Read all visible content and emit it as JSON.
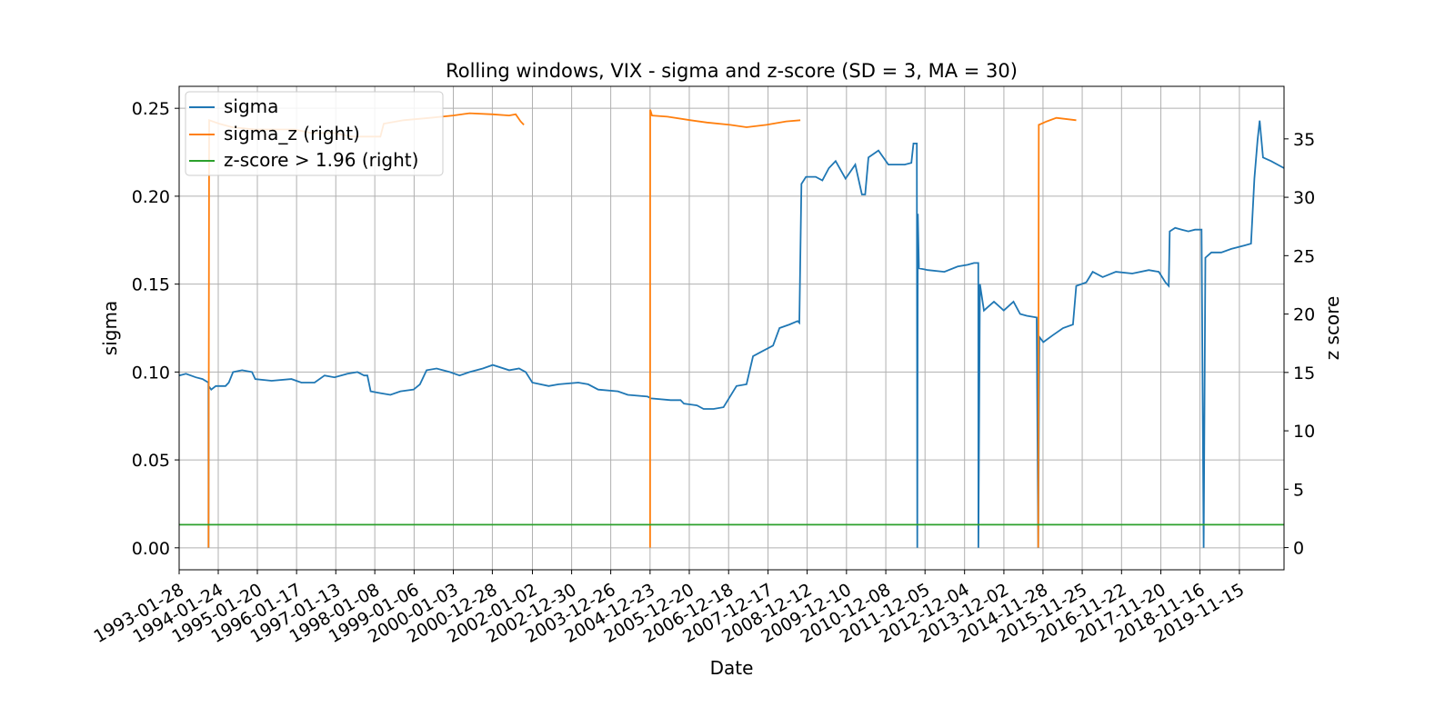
{
  "chart_data": {
    "type": "line",
    "title": "Rolling windows, VIX - sigma and z-score (SD = 3, MA = 30)",
    "xlabel": "Date",
    "ylabel": "sigma",
    "y2label": "z score",
    "xlim": [
      "1993-01-28",
      "2020-12-31"
    ],
    "ylim": [
      -0.0125,
      0.2625
    ],
    "y2lim": [
      -1.9,
      39.5
    ],
    "grid": true,
    "legend_position": "top-left",
    "x_ticks": [
      "1993-01-28",
      "1994-01-24",
      "1995-01-20",
      "1996-01-17",
      "1997-01-13",
      "1998-01-08",
      "1999-01-06",
      "2000-01-03",
      "2000-12-28",
      "2002-01-02",
      "2002-12-30",
      "2003-12-26",
      "2004-12-23",
      "2005-12-20",
      "2006-12-18",
      "2007-12-17",
      "2008-12-12",
      "2009-12-10",
      "2010-12-08",
      "2011-12-05",
      "2012-12-04",
      "2013-12-02",
      "2014-11-28",
      "2015-11-25",
      "2016-11-22",
      "2017-11-20",
      "2018-11-16",
      "2019-11-15"
    ],
    "y_ticks": [
      "0.00",
      "0.05",
      "0.10",
      "0.15",
      "0.20",
      "0.25"
    ],
    "y2_ticks": [
      "0",
      "5",
      "10",
      "15",
      "20",
      "25",
      "30",
      "35"
    ],
    "colors": {
      "sigma": "#1f77b4",
      "sigma_z": "#ff7f0e",
      "zscore": "#2ca02c"
    },
    "series": [
      {
        "name": "sigma",
        "axis": "left",
        "points": [
          [
            "1993-01-28",
            0.098
          ],
          [
            "1993-04-01",
            0.099
          ],
          [
            "1993-07-01",
            0.097
          ],
          [
            "1993-09-01",
            0.096
          ],
          [
            "1993-10-25",
            0.094
          ],
          [
            "1993-10-26",
            0.0
          ],
          [
            "1993-10-27",
            0.092
          ],
          [
            "1993-11-20",
            0.09
          ],
          [
            "1994-01-01",
            0.092
          ],
          [
            "1994-04-01",
            0.092
          ],
          [
            "1994-05-01",
            0.094
          ],
          [
            "1994-06-10",
            0.1
          ],
          [
            "1994-09-01",
            0.101
          ],
          [
            "1994-12-01",
            0.1
          ],
          [
            "1995-01-01",
            0.096
          ],
          [
            "1995-06-01",
            0.095
          ],
          [
            "1995-12-01",
            0.096
          ],
          [
            "1996-03-01",
            0.094
          ],
          [
            "1996-07-01",
            0.094
          ],
          [
            "1996-10-01",
            0.098
          ],
          [
            "1997-01-01",
            0.097
          ],
          [
            "1997-05-01",
            0.099
          ],
          [
            "1997-08-01",
            0.1
          ],
          [
            "1997-10-01",
            0.098
          ],
          [
            "1997-11-01",
            0.098
          ],
          [
            "1997-12-01",
            0.089
          ],
          [
            "1998-03-01",
            0.088
          ],
          [
            "1998-06-01",
            0.087
          ],
          [
            "1998-09-01",
            0.089
          ],
          [
            "1999-01-01",
            0.09
          ],
          [
            "1999-03-01",
            0.093
          ],
          [
            "1999-05-01",
            0.101
          ],
          [
            "1999-08-01",
            0.102
          ],
          [
            "1999-12-01",
            0.1
          ],
          [
            "2000-03-01",
            0.098
          ],
          [
            "2000-06-01",
            0.1
          ],
          [
            "2000-10-01",
            0.102
          ],
          [
            "2001-01-01",
            0.104
          ],
          [
            "2001-06-01",
            0.101
          ],
          [
            "2001-09-01",
            0.102
          ],
          [
            "2001-11-01",
            0.1
          ],
          [
            "2002-01-01",
            0.094
          ],
          [
            "2002-06-01",
            0.092
          ],
          [
            "2002-09-01",
            0.093
          ],
          [
            "2003-03-01",
            0.094
          ],
          [
            "2003-06-01",
            0.093
          ],
          [
            "2003-09-01",
            0.09
          ],
          [
            "2004-03-01",
            0.089
          ],
          [
            "2004-06-01",
            0.087
          ],
          [
            "2004-12-01",
            0.086
          ],
          [
            "2005-01-01",
            0.085
          ],
          [
            "2005-07-01",
            0.084
          ],
          [
            "2005-10-01",
            0.084
          ],
          [
            "2005-11-01",
            0.082
          ],
          [
            "2006-03-01",
            0.081
          ],
          [
            "2006-05-01",
            0.079
          ],
          [
            "2006-08-01",
            0.079
          ],
          [
            "2006-11-01",
            0.08
          ],
          [
            "2007-03-01",
            0.092
          ],
          [
            "2007-06-01",
            0.093
          ],
          [
            "2007-08-01",
            0.109
          ],
          [
            "2007-11-01",
            0.112
          ],
          [
            "2008-02-01",
            0.115
          ],
          [
            "2008-04-01",
            0.125
          ],
          [
            "2008-07-01",
            0.127
          ],
          [
            "2008-09-15",
            0.129
          ],
          [
            "2008-10-01",
            0.128
          ],
          [
            "2008-10-20",
            0.207
          ],
          [
            "2008-12-01",
            0.211
          ],
          [
            "2009-03-01",
            0.211
          ],
          [
            "2009-05-01",
            0.209
          ],
          [
            "2009-07-01",
            0.216
          ],
          [
            "2009-09-01",
            0.22
          ],
          [
            "2009-12-01",
            0.21
          ],
          [
            "2010-03-01",
            0.218
          ],
          [
            "2010-05-01",
            0.201
          ],
          [
            "2010-06-01",
            0.201
          ],
          [
            "2010-07-01",
            0.222
          ],
          [
            "2010-10-01",
            0.226
          ],
          [
            "2011-01-01",
            0.218
          ],
          [
            "2011-06-01",
            0.218
          ],
          [
            "2011-08-01",
            0.219
          ],
          [
            "2011-08-20",
            0.23
          ],
          [
            "2011-09-20",
            0.23
          ],
          [
            "2011-09-25",
            0.0
          ],
          [
            "2011-09-30",
            0.19
          ],
          [
            "2011-10-10",
            0.159
          ],
          [
            "2012-01-01",
            0.158
          ],
          [
            "2012-06-01",
            0.157
          ],
          [
            "2012-10-01",
            0.16
          ],
          [
            "2013-01-01",
            0.161
          ],
          [
            "2013-03-01",
            0.162
          ],
          [
            "2013-04-10",
            0.162
          ],
          [
            "2013-04-11",
            0.0
          ],
          [
            "2013-04-25",
            0.15
          ],
          [
            "2013-06-01",
            0.135
          ],
          [
            "2013-09-01",
            0.14
          ],
          [
            "2013-12-01",
            0.135
          ],
          [
            "2014-03-01",
            0.14
          ],
          [
            "2014-05-01",
            0.133
          ],
          [
            "2014-07-01",
            0.132
          ],
          [
            "2014-10-01",
            0.131
          ],
          [
            "2014-10-15",
            0.0
          ],
          [
            "2014-10-25",
            0.12
          ],
          [
            "2014-12-01",
            0.117
          ],
          [
            "2015-03-01",
            0.121
          ],
          [
            "2015-06-01",
            0.125
          ],
          [
            "2015-09-01",
            0.127
          ],
          [
            "2015-10-01",
            0.149
          ],
          [
            "2016-01-01",
            0.151
          ],
          [
            "2016-03-01",
            0.157
          ],
          [
            "2016-06-01",
            0.154
          ],
          [
            "2016-10-01",
            0.157
          ],
          [
            "2017-03-01",
            0.156
          ],
          [
            "2017-08-01",
            0.158
          ],
          [
            "2017-11-01",
            0.157
          ],
          [
            "2018-01-01",
            0.151
          ],
          [
            "2018-02-01",
            0.149
          ],
          [
            "2018-02-10",
            0.18
          ],
          [
            "2018-04-01",
            0.182
          ],
          [
            "2018-06-01",
            0.181
          ],
          [
            "2018-08-01",
            0.18
          ],
          [
            "2018-10-01",
            0.181
          ],
          [
            "2018-12-01",
            0.181
          ],
          [
            "2018-12-20",
            0.0
          ],
          [
            "2019-01-05",
            0.165
          ],
          [
            "2019-03-01",
            0.168
          ],
          [
            "2019-06-01",
            0.168
          ],
          [
            "2019-09-01",
            0.17
          ],
          [
            "2020-01-01",
            0.172
          ],
          [
            "2020-03-01",
            0.173
          ],
          [
            "2020-04-01",
            0.21
          ],
          [
            "2020-05-01",
            0.232
          ],
          [
            "2020-05-20",
            0.243
          ],
          [
            "2020-06-20",
            0.222
          ],
          [
            "2020-09-01",
            0.22
          ],
          [
            "2020-12-31",
            0.216
          ]
        ]
      },
      {
        "name": "sigma_z (right)",
        "axis": "right",
        "segments": [
          [
            [
              "1993-10-26",
              0
            ],
            [
              "1993-11-01",
              36.6
            ],
            [
              "1994-02-01",
              36.3
            ],
            [
              "1994-06-01",
              36.0
            ],
            [
              "1995-01-01",
              35.8
            ],
            [
              "1996-01-01",
              35.8
            ],
            [
              "1996-06-01",
              35.5
            ],
            [
              "1997-01-01",
              35.5
            ],
            [
              "1997-06-01",
              35.2
            ],
            [
              "1998-03-01",
              35.2
            ],
            [
              "1998-04-01",
              36.3
            ],
            [
              "1998-10-01",
              36.6
            ],
            [
              "1999-06-01",
              36.8
            ],
            [
              "2000-01-01",
              37.0
            ],
            [
              "2000-06-01",
              37.2
            ],
            [
              "2001-01-01",
              37.1
            ],
            [
              "2001-06-01",
              37.0
            ],
            [
              "2001-08-01",
              37.1
            ],
            [
              "2001-09-15",
              36.5
            ],
            [
              "2001-10-15",
              36.2
            ]
          ],
          [
            [
              "2004-12-23",
              0
            ],
            [
              "2004-12-24",
              37.5
            ],
            [
              "2005-01-10",
              37.0
            ],
            [
              "2005-06-01",
              36.9
            ],
            [
              "2006-01-01",
              36.6
            ],
            [
              "2006-06-01",
              36.4
            ],
            [
              "2007-01-01",
              36.2
            ],
            [
              "2007-06-01",
              36.0
            ],
            [
              "2007-12-01",
              36.2
            ],
            [
              "2008-06-01",
              36.5
            ],
            [
              "2008-10-10",
              36.6
            ]
          ],
          [
            [
              "2014-10-15",
              0
            ],
            [
              "2014-10-20",
              36.2
            ],
            [
              "2015-01-01",
              36.5
            ],
            [
              "2015-04-01",
              36.8
            ],
            [
              "2015-10-01",
              36.6
            ]
          ]
        ]
      },
      {
        "name": "z-score > 1.96 (right)",
        "axis": "right",
        "points": [
          [
            "1993-01-28",
            1.96
          ],
          [
            "2020-12-31",
            1.96
          ]
        ]
      }
    ]
  }
}
